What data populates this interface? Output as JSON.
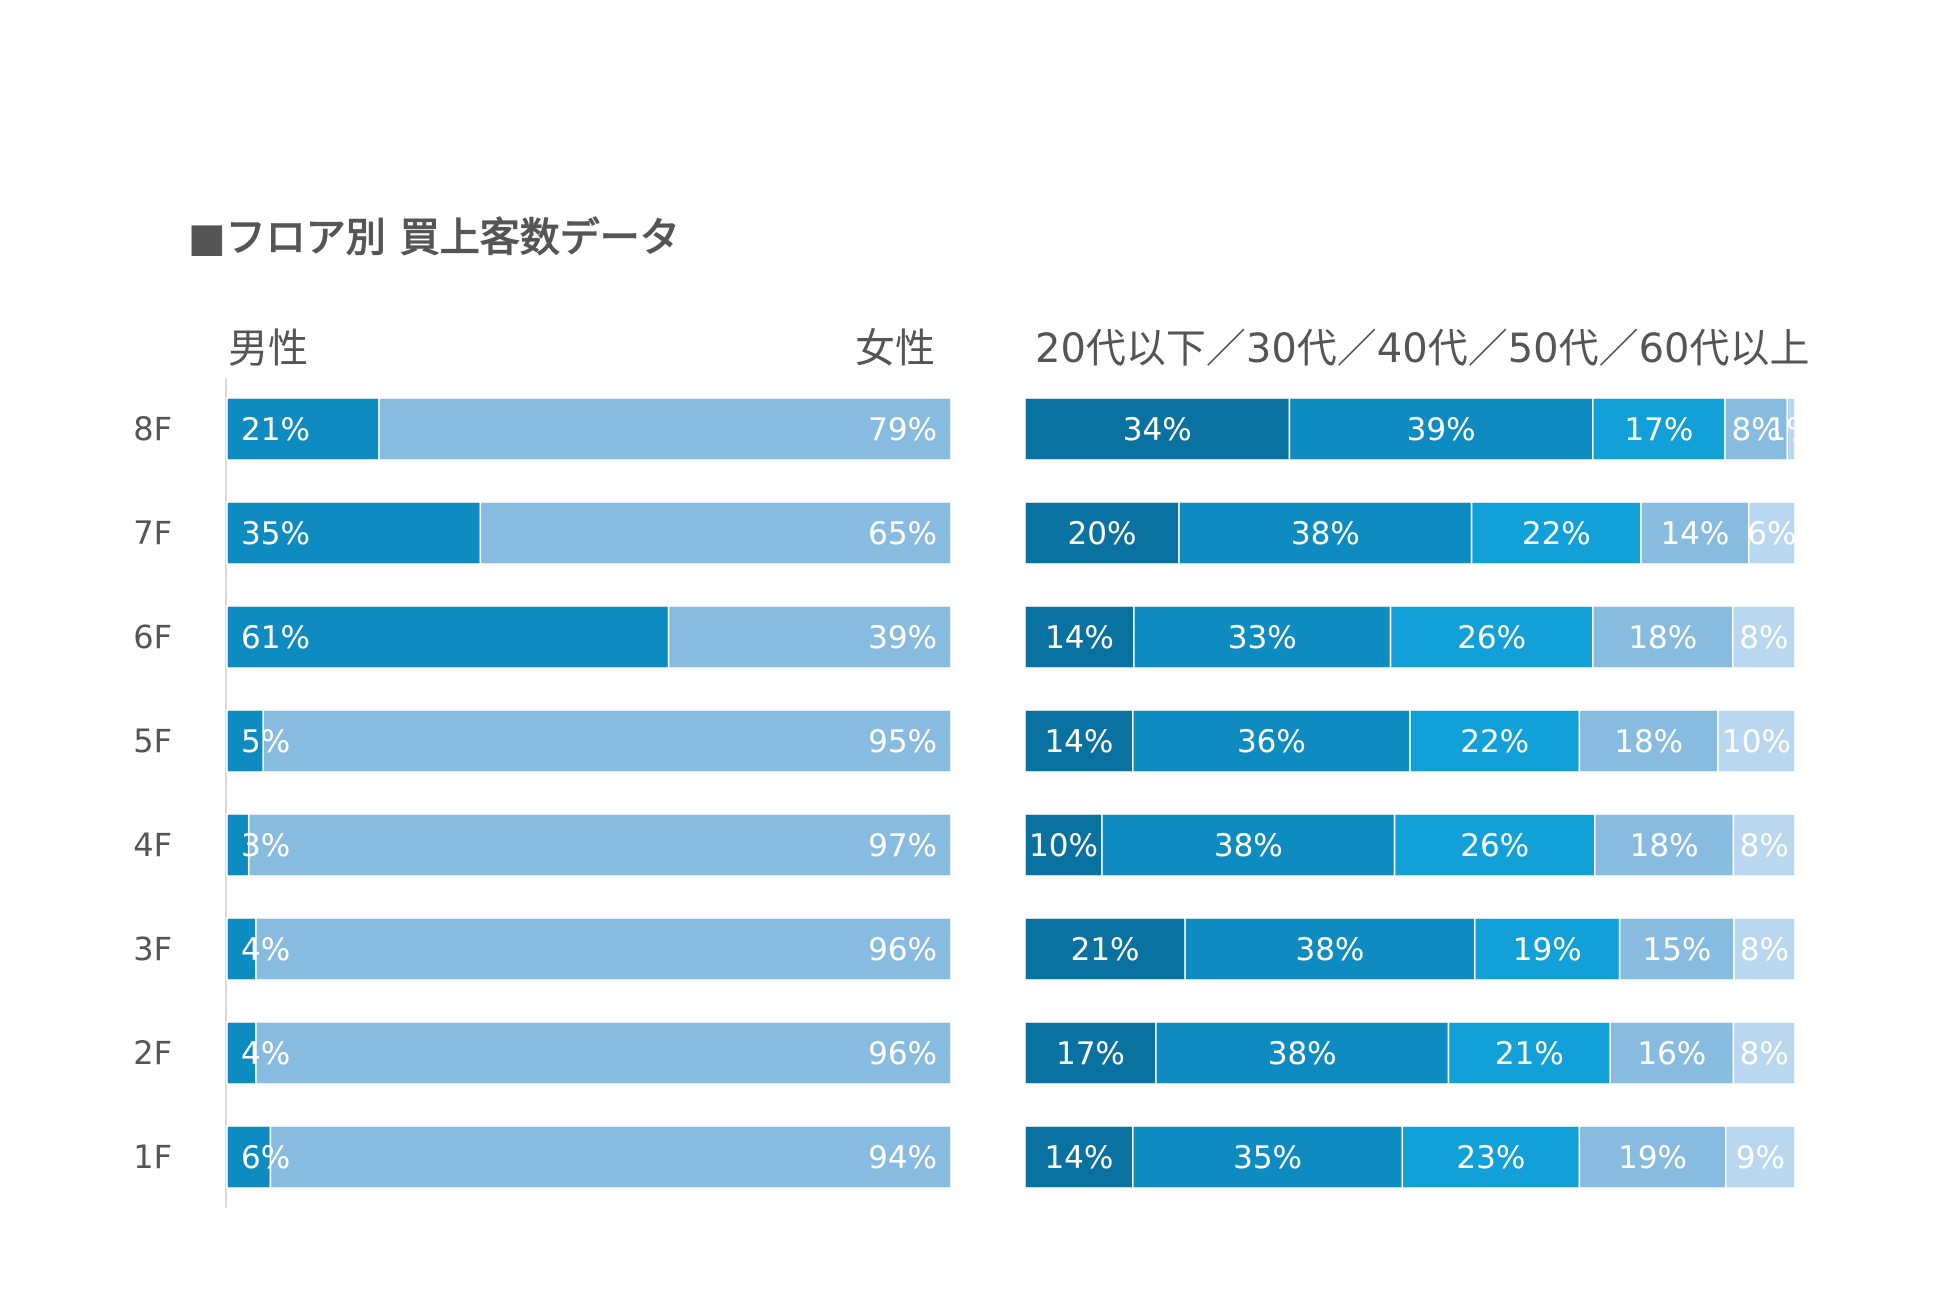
{
  "title": "■フロア別 買上客数データ",
  "chart_data": [
    {
      "type": "bar",
      "orientation": "horizontal",
      "stacked": "100%",
      "categories": [
        "8F",
        "7F",
        "6F",
        "5F",
        "4F",
        "3F",
        "2F",
        "1F"
      ],
      "left_label": "男性",
      "right_label": "女性",
      "series": [
        {
          "name": "男性",
          "values": [
            21,
            35,
            61,
            5,
            3,
            4,
            4,
            6
          ],
          "labels": [
            "21%",
            "35%",
            "61%",
            "5%",
            "3%",
            "4%",
            "4%",
            "6%"
          ],
          "color": "#0e8bc0"
        },
        {
          "name": "女性",
          "values": [
            79,
            65,
            39,
            95,
            97,
            96,
            96,
            94
          ],
          "labels": [
            "79%",
            "65%",
            "39%",
            "95%",
            "97%",
            "96%",
            "96%",
            "94%"
          ],
          "color": "#88bbe0"
        }
      ]
    },
    {
      "type": "bar",
      "orientation": "horizontal",
      "stacked": "100%",
      "categories": [
        "8F",
        "7F",
        "6F",
        "5F",
        "4F",
        "3F",
        "2F",
        "1F"
      ],
      "header": "20代以下／30代／40代／50代／60代以上",
      "series": [
        {
          "name": "20代以下",
          "values": [
            34,
            20,
            14,
            14,
            10,
            21,
            17,
            14
          ],
          "labels": [
            "34%",
            "20%",
            "14%",
            "14%",
            "10%",
            "21%",
            "17%",
            "14%"
          ],
          "color": "#0a72a0"
        },
        {
          "name": "30代",
          "values": [
            39,
            38,
            33,
            36,
            38,
            38,
            38,
            35
          ],
          "labels": [
            "39%",
            "38%",
            "33%",
            "36%",
            "38%",
            "38%",
            "38%",
            "35%"
          ],
          "color": "#0e8bc0"
        },
        {
          "name": "40代",
          "values": [
            17,
            22,
            26,
            22,
            26,
            19,
            21,
            23
          ],
          "labels": [
            "17%",
            "22%",
            "26%",
            "22%",
            "26%",
            "19%",
            "21%",
            "23%"
          ],
          "color": "#11a0d8"
        },
        {
          "name": "50代",
          "values": [
            8,
            14,
            18,
            18,
            18,
            15,
            16,
            19
          ],
          "labels": [
            "8%",
            "14%",
            "18%",
            "18%",
            "18%",
            "15%",
            "16%",
            "19%"
          ],
          "color": "#88bbe0"
        },
        {
          "name": "60代以上",
          "values": [
            1,
            6,
            8,
            10,
            8,
            8,
            8,
            9
          ],
          "labels": [
            "1%",
            "6%",
            "8%",
            "10%",
            "8%",
            "8%",
            "8%",
            "9%"
          ],
          "color": "#b9d7ee"
        }
      ]
    }
  ]
}
